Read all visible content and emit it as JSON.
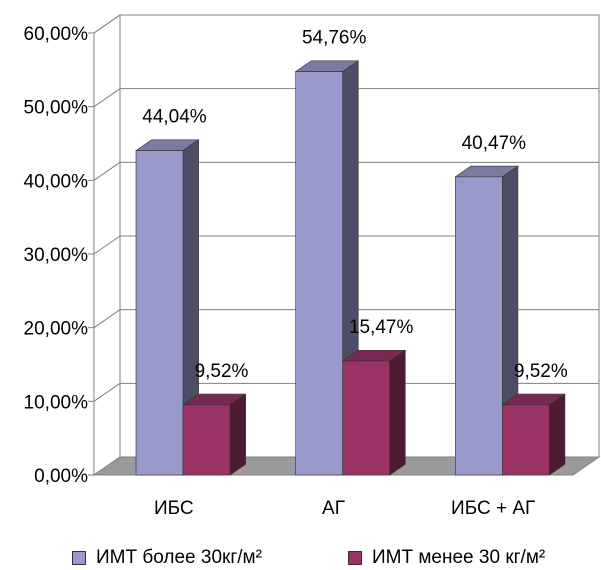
{
  "chart_data": {
    "type": "bar",
    "categories": [
      "ИБС",
      "АГ",
      "ИБС + АГ"
    ],
    "series": [
      {
        "name": "ИМТ более 30кг/м²",
        "values": [
          44.04,
          54.76,
          40.47
        ],
        "labels": [
          "44,04%",
          "54,76%",
          "40,47%"
        ],
        "color": "#9999cc"
      },
      {
        "name": "ИМТ менее 30 кг/м²",
        "values": [
          9.52,
          15.47,
          9.52
        ],
        "labels": [
          "9,52%",
          "15,47%",
          "9,52%"
        ],
        "color": "#993366"
      }
    ],
    "yticks": [
      "0,00%",
      "10,00%",
      "20,00%",
      "30,00%",
      "40,00%",
      "50,00%",
      "60,00%"
    ],
    "ylim": [
      0,
      60
    ],
    "grid": true,
    "legend_position": "bottom"
  }
}
